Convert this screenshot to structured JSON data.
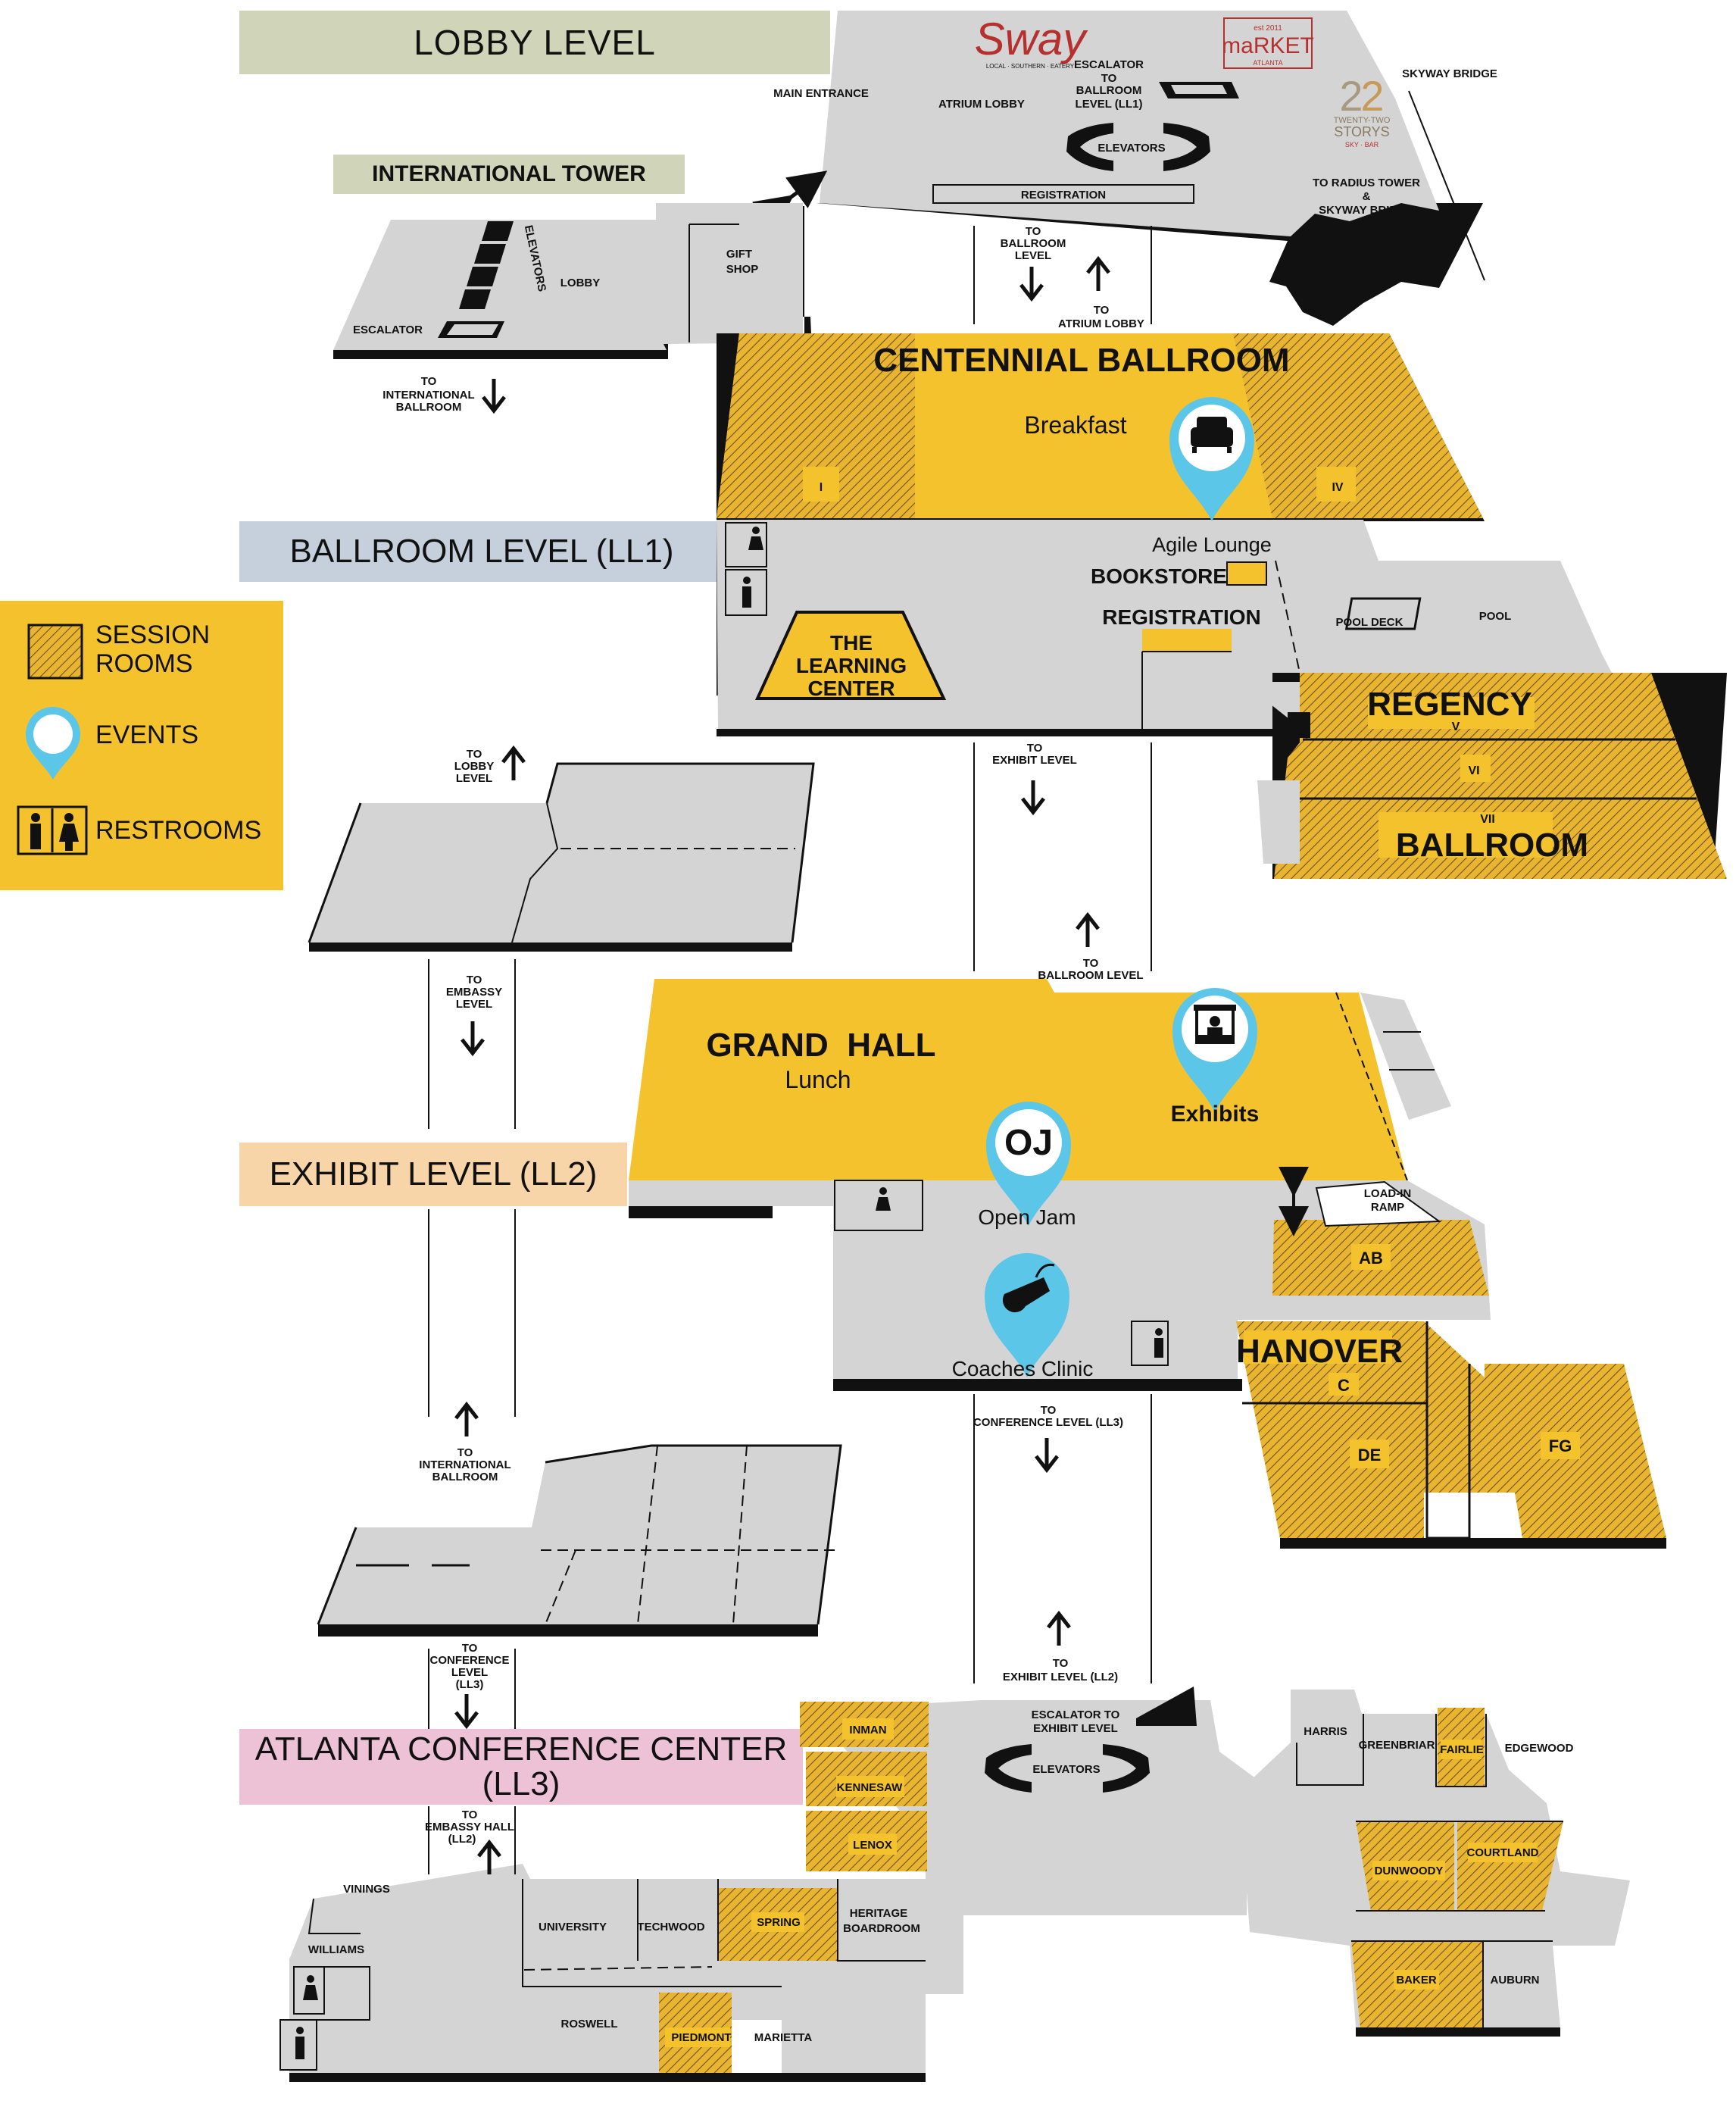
{
  "colors": {
    "floor": "#d4d4d4",
    "session": "#e9b530",
    "event_area": "#f4c22d",
    "pin": "#5bc6e8",
    "lobby_banner": "#d0d4b8",
    "ballroom_banner": "#c5d0dc",
    "exhibit_banner": "#f7d5a8",
    "conference_banner": "#eec2d6",
    "edge": "#111111"
  },
  "levels": {
    "lobby": "LOBBY LEVEL",
    "international_tower": "INTERNATIONAL TOWER",
    "ballroom": "BALLROOM LEVEL (LL1)",
    "exhibit": "EXHIBIT LEVEL (LL2)",
    "conference_line1": "ATLANTA CONFERENCE CENTER",
    "conference_line2": "(LL3)"
  },
  "legend": {
    "session_line1": "SESSION",
    "session_line2": "ROOMS",
    "events": "EVENTS",
    "restrooms": "RESTROOMS"
  },
  "logos": {
    "sway": "Sway",
    "sway_sub": "LOCAL · SOUTHERN · EATERY",
    "market": "maRKET",
    "market_top": "est 2011",
    "market_bottom": "ATLANTA",
    "storys_line1": "TWENTY-TWO",
    "storys_line2": "STORYS",
    "storys_line3": "SKY · BAR"
  },
  "lobby": {
    "main_entrance": "MAIN ENTRANCE",
    "atrium_lobby": "ATRIUM LOBBY",
    "escalator_1": "ESCALATOR",
    "escalator_2": "TO",
    "escalator_3": "BALLROOM",
    "escalator_4": "LEVEL (LL1)",
    "elevators": "ELEVATORS",
    "skyway_bridge": "SKYWAY BRIDGE",
    "radius_1": "TO RADIUS TOWER",
    "radius_2": "&",
    "radius_3": "SKYWAY BRIDGE",
    "registration": "REGISTRATION",
    "gift_1": "GIFT",
    "gift_2": "SHOP",
    "tower_lobby": "LOBBY",
    "tower_elevators": "ELEVATORS",
    "tower_escalator": "ESCALATOR",
    "to_intl_1": "TO",
    "to_intl_2": "INTERNATIONAL",
    "to_intl_3": "BALLROOM",
    "to_ballroom_1": "TO",
    "to_ballroom_2": "BALLROOM",
    "to_ballroom_3": "LEVEL",
    "to_atrium_1": "TO",
    "to_atrium_2": "ATRIUM LOBBY"
  },
  "ballroom": {
    "centennial": "CENTENNIAL BALLROOM",
    "breakfast": "Breakfast",
    "room_i": "I",
    "room_iv": "IV",
    "agile_lounge": "Agile Lounge",
    "bookstore": "BOOKSTORE",
    "registration": "REGISTRATION",
    "learning_1": "THE",
    "learning_2": "LEARNING",
    "learning_3": "CENTER",
    "pool_deck": "POOL DECK",
    "pool": "POOL",
    "regency": "REGENCY",
    "room_v": "V",
    "room_vi": "VI",
    "room_vii": "VII",
    "ballroom_word": "BALLROOM",
    "to_lobby_1": "TO",
    "to_lobby_2": "LOBBY",
    "to_lobby_3": "LEVEL",
    "to_exhibit_1": "TO",
    "to_exhibit_2": "EXHIBIT LEVEL",
    "to_embassy_1": "TO",
    "to_embassy_2": "EMBASSY",
    "to_embassy_3": "LEVEL",
    "to_ballroom_1": "TO",
    "to_ballroom_2": "BALLROOM LEVEL"
  },
  "exhibit": {
    "grand_hall": "GRAND  HALL",
    "lunch": "Lunch",
    "exhibits": "Exhibits",
    "oj": "OJ",
    "open_jam": "Open Jam",
    "coaches_clinic": "Coaches Clinic",
    "load_in_1": "LOAD-IN",
    "load_in_2": "RAMP",
    "room_ab": "AB",
    "hanover": "HANOVER",
    "room_c": "C",
    "room_de": "DE",
    "room_fg": "FG",
    "to_conference_1": "TO",
    "to_conference_2": "CONFERENCE LEVEL (LL3)",
    "to_intl_1": "TO",
    "to_intl_2": "INTERNATIONAL",
    "to_intl_3": "BALLROOM"
  },
  "conference": {
    "to_conf_1": "TO",
    "to_conf_2": "CONFERENCE",
    "to_conf_3": "LEVEL",
    "to_conf_4": "(LL3)",
    "to_exhibit_1": "TO",
    "to_exhibit_2": "EXHIBIT LEVEL (LL2)",
    "to_embassy_1": "TO",
    "to_embassy_2": "EMBASSY HALL",
    "to_embassy_3": "(LL2)",
    "escalator_1": "ESCALATOR TO",
    "escalator_2": "EXHIBIT LEVEL",
    "elevators": "ELEVATORS",
    "inman": "INMAN",
    "kennesaw": "KENNESAW",
    "lenox": "LENOX",
    "harris": "HARRIS",
    "greenbriar": "GREENBRIAR",
    "fairlie": "FAIRLIE",
    "edgewood": "EDGEWOOD",
    "dunwoody": "DUNWOODY",
    "courtland": "COURTLAND",
    "baker": "BAKER",
    "auburn": "AUBURN",
    "vinings": "VININGS",
    "williams": "WILLIAMS",
    "university": "UNIVERSITY",
    "techwood": "TECHWOOD",
    "spring": "SPRING",
    "heritage_1": "HERITAGE",
    "heritage_2": "BOARDROOM",
    "roswell": "ROSWELL",
    "piedmont": "PIEDMONT",
    "marietta": "MARIETTA"
  }
}
